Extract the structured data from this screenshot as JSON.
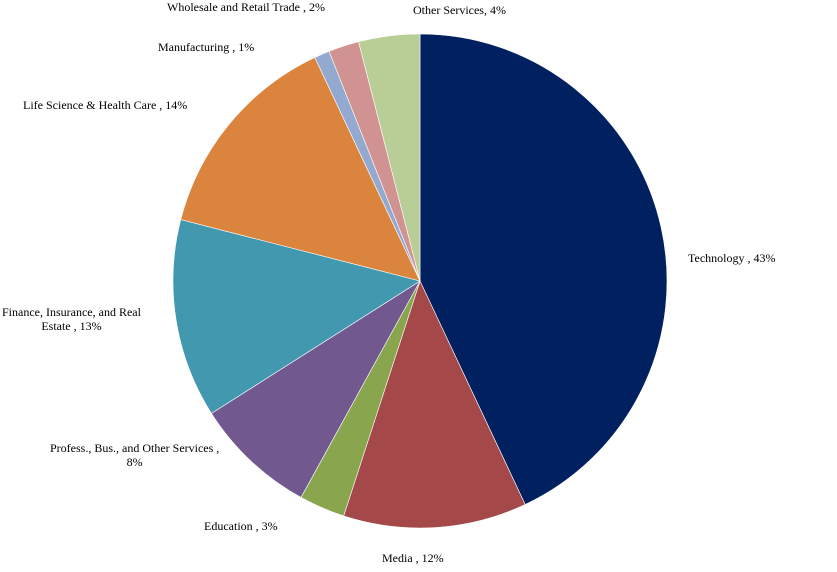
{
  "chart_data": {
    "type": "pie",
    "title": "",
    "start_angle_deg": 0,
    "direction": "clockwise",
    "slices": [
      {
        "label": "Technology",
        "value": 43,
        "display": "Technology , 43%",
        "color": "#002060"
      },
      {
        "label": "Media",
        "value": 12,
        "display": "Media , 12%",
        "color": "#A5484A"
      },
      {
        "label": "Education",
        "value": 3,
        "display": "Education , 3%",
        "color": "#89A54E"
      },
      {
        "label": "Profess., Bus., and Other Services",
        "value": 8,
        "display_line1": "Profess., Bus., and Other Services ,",
        "display_line2": "8%",
        "color": "#71588F"
      },
      {
        "label": "Finance, Insurance, and Real Estate",
        "value": 13,
        "display_line1": "Finance, Insurance, and Real",
        "display_line2": "Estate , 13%",
        "color": "#4198AF"
      },
      {
        "label": "Life Science & Health Care",
        "value": 14,
        "display": "Life Science & Health Care , 14%",
        "color": "#DB843D"
      },
      {
        "label": "Manufacturing",
        "value": 1,
        "display": "Manufacturing , 1%",
        "color": "#93A9CF"
      },
      {
        "label": "Wholesale and Retail Trade",
        "value": 2,
        "display": "Wholesale and Retail Trade , 2%",
        "color": "#D19392"
      },
      {
        "label": "Other Services",
        "value": 4,
        "display": "Other Services, 4%",
        "color": "#B9CD96"
      }
    ],
    "legend": "none",
    "data_labels": "outside, category name and percentage"
  }
}
